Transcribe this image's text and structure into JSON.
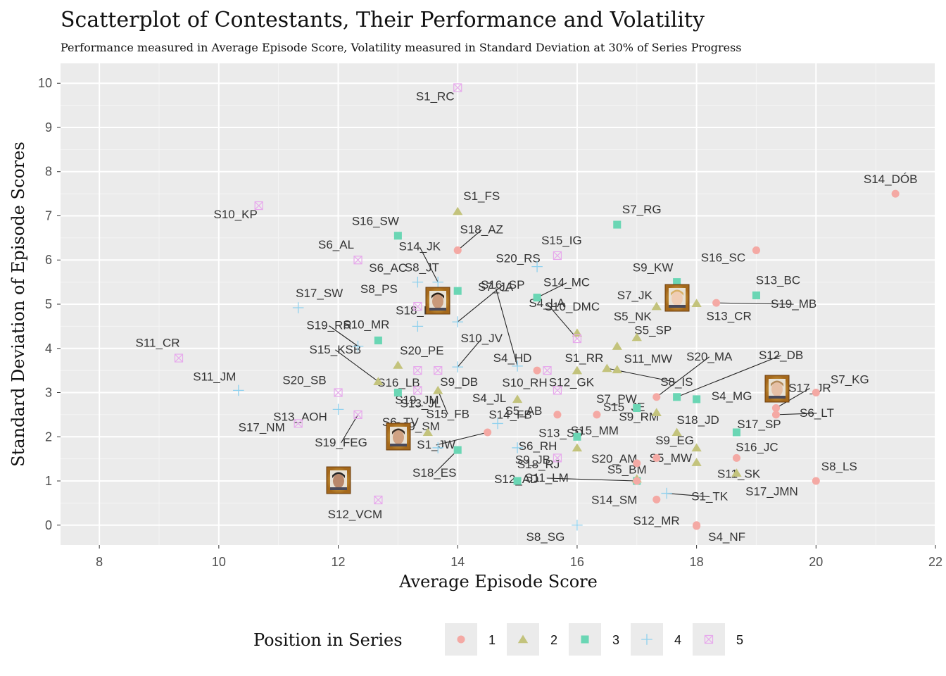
{
  "chart_data": {
    "type": "scatter",
    "title": "Scatterplot of Contestants, Their Performance and Volatility",
    "subtitle": "Performance measured in Average Episode Score, Volatility measured in Standard Deviation at 30% of Series Progress",
    "xlabel": "Average Episode Score",
    "ylabel": "Standard Deviation of Episode Scores",
    "xlim": [
      7.35,
      22
    ],
    "ylim": [
      -0.45,
      10.45
    ],
    "x_ticks": [
      8,
      10,
      12,
      14,
      16,
      18,
      20,
      22
    ],
    "y_ticks": [
      0,
      1,
      2,
      3,
      4,
      5,
      6,
      7,
      8,
      9,
      10
    ],
    "grid": true,
    "legend": {
      "title": "Position in Series",
      "placement": "bottom",
      "entries": [
        "1",
        "2",
        "3",
        "4",
        "5"
      ]
    },
    "colors": {
      "1": "#f4a9a4",
      "2": "#c3c37c",
      "3": "#6ad6b4",
      "4": "#8fd1ee",
      "5": "#e7a9ec"
    },
    "points": [
      {
        "label": "S1_RC",
        "x": 14.0,
        "y": 9.9,
        "pos": "5"
      },
      {
        "label": "S14_DÓB",
        "x": 21.33,
        "y": 7.5,
        "pos": "1"
      },
      {
        "label": "S10_KP",
        "x": 10.67,
        "y": 7.23,
        "pos": "5"
      },
      {
        "label": "S1_FS",
        "x": 14.0,
        "y": 7.1,
        "pos": "2"
      },
      {
        "label": "S7_RG",
        "x": 16.67,
        "y": 6.8,
        "pos": "3"
      },
      {
        "label": "S16_SW",
        "x": 13.0,
        "y": 6.55,
        "pos": "3"
      },
      {
        "label": "S18_AZ",
        "x": 14.0,
        "y": 6.22,
        "pos": "1"
      },
      {
        "label": "S16_SC",
        "x": 19.0,
        "y": 6.22,
        "pos": "1"
      },
      {
        "label": "S15_IG",
        "x": 15.67,
        "y": 6.1,
        "pos": "5"
      },
      {
        "label": "S6_AL",
        "x": 12.33,
        "y": 6.0,
        "pos": "5"
      },
      {
        "label": "S20_RS",
        "x": 15.33,
        "y": 5.85,
        "pos": "4"
      },
      {
        "label": "S14_JK",
        "x": 13.67,
        "y": 5.5,
        "pos": "4"
      },
      {
        "label": "S8_JT",
        "x": 13.33,
        "y": 5.5,
        "pos": "4"
      },
      {
        "label": "S9_KW",
        "x": 17.67,
        "y": 5.5,
        "pos": "3"
      },
      {
        "label": "S6_AC",
        "x": 14.0,
        "y": 5.3,
        "pos": "3"
      },
      {
        "label": "S13_BC",
        "x": 19.0,
        "y": 5.2,
        "pos": "3"
      },
      {
        "label": "S14_MC",
        "x": 15.33,
        "y": 5.15,
        "pos": "3"
      },
      {
        "label": "S19_MB",
        "x": 18.33,
        "y": 5.03,
        "pos": "1"
      },
      {
        "label": "S7_JK",
        "x": 17.33,
        "y": 4.95,
        "pos": "2"
      },
      {
        "label": "S13_CR",
        "x": 18.0,
        "y": 5.02,
        "pos": "2"
      },
      {
        "label": "S17_SW",
        "x": 11.33,
        "y": 4.92,
        "pos": "4"
      },
      {
        "label": "S8_PS",
        "x": 13.33,
        "y": 4.95,
        "pos": "5"
      },
      {
        "label": "S16_SP",
        "x": 14.0,
        "y": 4.6,
        "pos": "4"
      },
      {
        "label": "S18_BA",
        "x": 13.33,
        "y": 4.5,
        "pos": "4"
      },
      {
        "label": "S10_DMC",
        "x": 16.0,
        "y": 4.35,
        "pos": "2"
      },
      {
        "label": "S7_JA",
        "x": 15.0,
        "y": 3.6,
        "pos": "4"
      },
      {
        "label": "S4_LA",
        "x": 16.0,
        "y": 4.22,
        "pos": "5"
      },
      {
        "label": "S5_NK",
        "x": 17.0,
        "y": 4.25,
        "pos": "2"
      },
      {
        "label": "S5_SP",
        "x": 16.67,
        "y": 4.05,
        "pos": "2"
      },
      {
        "label": "S10_MR",
        "x": 12.67,
        "y": 4.18,
        "pos": "3"
      },
      {
        "label": "S19_RR",
        "x": 12.33,
        "y": 4.05,
        "pos": "4"
      },
      {
        "label": "S11_CR",
        "x": 9.33,
        "y": 3.78,
        "pos": "5"
      },
      {
        "label": "S10_JV",
        "x": 14.0,
        "y": 3.58,
        "pos": "4"
      },
      {
        "label": "S15_KSB",
        "x": 12.67,
        "y": 3.25,
        "pos": "2"
      },
      {
        "label": "S20_PE",
        "x": 13.0,
        "y": 3.62,
        "pos": "2"
      },
      {
        "label": "S1_RR",
        "x": 16.0,
        "y": 3.5,
        "pos": "2"
      },
      {
        "label": "S11_MW",
        "x": 16.67,
        "y": 3.52,
        "pos": "2"
      },
      {
        "label": "S8_IS",
        "x": 16.5,
        "y": 3.55,
        "pos": "2"
      },
      {
        "label": "S4_HD",
        "x": 15.33,
        "y": 3.5,
        "pos": "1"
      },
      {
        "label": "S10_RH",
        "x": 15.5,
        "y": 3.5,
        "pos": "5"
      },
      {
        "label": "S20_MA",
        "x": 17.33,
        "y": 2.9,
        "pos": "1"
      },
      {
        "label": "S12_DB",
        "x": 17.67,
        "y": 2.9,
        "pos": "3"
      },
      {
        "label": "S12_GK",
        "x": 15.67,
        "y": 3.05,
        "pos": "5"
      },
      {
        "label": "S16_LB",
        "x": 13.33,
        "y": 3.5,
        "pos": "5"
      },
      {
        "label": "S9_DB",
        "x": 13.67,
        "y": 3.5,
        "pos": "5"
      },
      {
        "label": "S11_JM",
        "x": 10.33,
        "y": 3.05,
        "pos": "4"
      },
      {
        "label": "S20_SB",
        "x": 12.0,
        "y": 3.0,
        "pos": "5"
      },
      {
        "label": "S13_JL",
        "x": 13.33,
        "y": 3.05,
        "pos": "5"
      },
      {
        "label": "S4_JL",
        "x": 15.0,
        "y": 2.85,
        "pos": "2"
      },
      {
        "label": "S17_JR",
        "x": 19.33,
        "y": 2.65,
        "pos": "1"
      },
      {
        "label": "S7_KG",
        "x": 20.0,
        "y": 3.0,
        "pos": "1"
      },
      {
        "label": "S15_JE",
        "x": 17.0,
        "y": 2.65,
        "pos": "3"
      },
      {
        "label": "S4_MG",
        "x": 18.0,
        "y": 2.85,
        "pos": "3"
      },
      {
        "label": "S7_PW",
        "x": 16.33,
        "y": 2.5,
        "pos": "1"
      },
      {
        "label": "S6_LT",
        "x": 19.33,
        "y": 2.5,
        "pos": "1"
      },
      {
        "label": "S13_AOH",
        "x": 12.0,
        "y": 2.62,
        "pos": "4"
      },
      {
        "label": "S19_JM",
        "x": 13.0,
        "y": 3.0,
        "pos": "3"
      },
      {
        "label": "S15_FB",
        "x": 13.67,
        "y": 3.05,
        "pos": "2"
      },
      {
        "label": "S17_NM",
        "x": 11.33,
        "y": 2.3,
        "pos": "5"
      },
      {
        "label": "S19_FEG",
        "x": 12.33,
        "y": 2.5,
        "pos": "5"
      },
      {
        "label": "S5_AB",
        "x": 15.67,
        "y": 2.5,
        "pos": "1"
      },
      {
        "label": "S9_RM",
        "x": 17.33,
        "y": 2.55,
        "pos": "2"
      },
      {
        "label": "S18_JD",
        "x": 17.67,
        "y": 2.1,
        "pos": "2"
      },
      {
        "label": "S17_SP",
        "x": 18.67,
        "y": 2.1,
        "pos": "3"
      },
      {
        "label": "S6_TV",
        "x": 13.5,
        "y": 2.1,
        "pos": "2"
      },
      {
        "label": "S19_SM",
        "x": 13.67,
        "y": 1.75,
        "pos": "4"
      },
      {
        "label": "S14_FB",
        "x": 14.67,
        "y": 2.3,
        "pos": "4"
      },
      {
        "label": "S13_SD",
        "x": 16.0,
        "y": 2.0,
        "pos": "3"
      },
      {
        "label": "S15_MM",
        "x": 16.0,
        "y": 1.75,
        "pos": "2"
      },
      {
        "label": "S1_JW",
        "x": 14.5,
        "y": 2.1,
        "pos": "1"
      },
      {
        "label": "S6_RH",
        "x": 15.0,
        "y": 1.75,
        "pos": "4"
      },
      {
        "label": "S18_ES",
        "x": 14.0,
        "y": 1.7,
        "pos": "3"
      },
      {
        "label": "S9_JB",
        "x": 15.67,
        "y": 1.52,
        "pos": "5"
      },
      {
        "label": "S20_AM",
        "x": 17.0,
        "y": 1.4,
        "pos": "1"
      },
      {
        "label": "S9_EG",
        "x": 18.0,
        "y": 1.75,
        "pos": "2"
      },
      {
        "label": "S16_JC",
        "x": 18.67,
        "y": 1.52,
        "pos": "1"
      },
      {
        "label": "S18_RJ",
        "x": 15.0,
        "y": 1.0,
        "pos": "3"
      },
      {
        "label": "S11_SK",
        "x": 18.0,
        "y": 1.42,
        "pos": "2"
      },
      {
        "label": "S8_LS",
        "x": 20.0,
        "y": 1.0,
        "pos": "1"
      },
      {
        "label": "S5_BM",
        "x": 17.33,
        "y": 1.52,
        "pos": "1"
      },
      {
        "label": "S17_JMN",
        "x": 18.67,
        "y": 1.18,
        "pos": "2"
      },
      {
        "label": "S12_AD",
        "x": 17.0,
        "y": 1.0,
        "pos": "3"
      },
      {
        "label": "S5_MW",
        "x": 17.0,
        "y": 1.05,
        "pos": "2"
      },
      {
        "label": "S11_LM",
        "x": 17.0,
        "y": 1.0,
        "pos": "1"
      },
      {
        "label": "S14_SM",
        "x": 17.33,
        "y": 0.58,
        "pos": "1"
      },
      {
        "label": "S1_TK",
        "x": 17.5,
        "y": 0.72,
        "pos": "4"
      },
      {
        "label": "S12_VCM",
        "x": 12.67,
        "y": 0.57,
        "pos": "5"
      },
      {
        "label": "S12_MR",
        "x": 18.0,
        "y": 0.0,
        "pos": "1"
      },
      {
        "label": "S8_SG",
        "x": 16.0,
        "y": 0.0,
        "pos": "4"
      },
      {
        "label": "S4_NF",
        "x": 18.0,
        "y": -0.02,
        "pos": "1"
      }
    ]
  }
}
